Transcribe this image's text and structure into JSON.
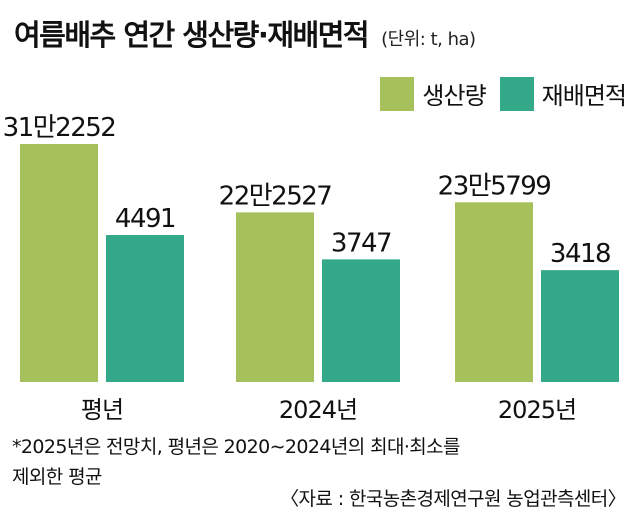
{
  "title": "여름배추 연간 생산량·재배면적",
  "unit": "(단위: t, ha)",
  "footnote_line1": "*2025년은 전망치, 평년은 2020∼2024년의 최대·최소를",
  "footnote_line2": "제외한 평균",
  "source": "〈자료 : 한국농촌경제연구원 농업관측센터〉",
  "colors": {
    "production": "#a6c15b",
    "area": "#34a98a"
  },
  "chart_data": {
    "type": "bar",
    "title": "여름배추 연간 생산량·재배면적",
    "legend_position": "top-right",
    "grid": false,
    "categories": [
      "평년",
      "2024년",
      "2025년"
    ],
    "series": [
      {
        "name": "생산량",
        "values": [
          312252,
          222527,
          235799
        ],
        "labels": [
          "31만2252",
          "22만2527",
          "23만5799"
        ],
        "color": "#a6c15b"
      },
      {
        "name": "재배면적",
        "values": [
          4491,
          3747,
          3418
        ],
        "labels": [
          "4491",
          "3747",
          "3418"
        ],
        "color": "#34a98a"
      }
    ]
  }
}
